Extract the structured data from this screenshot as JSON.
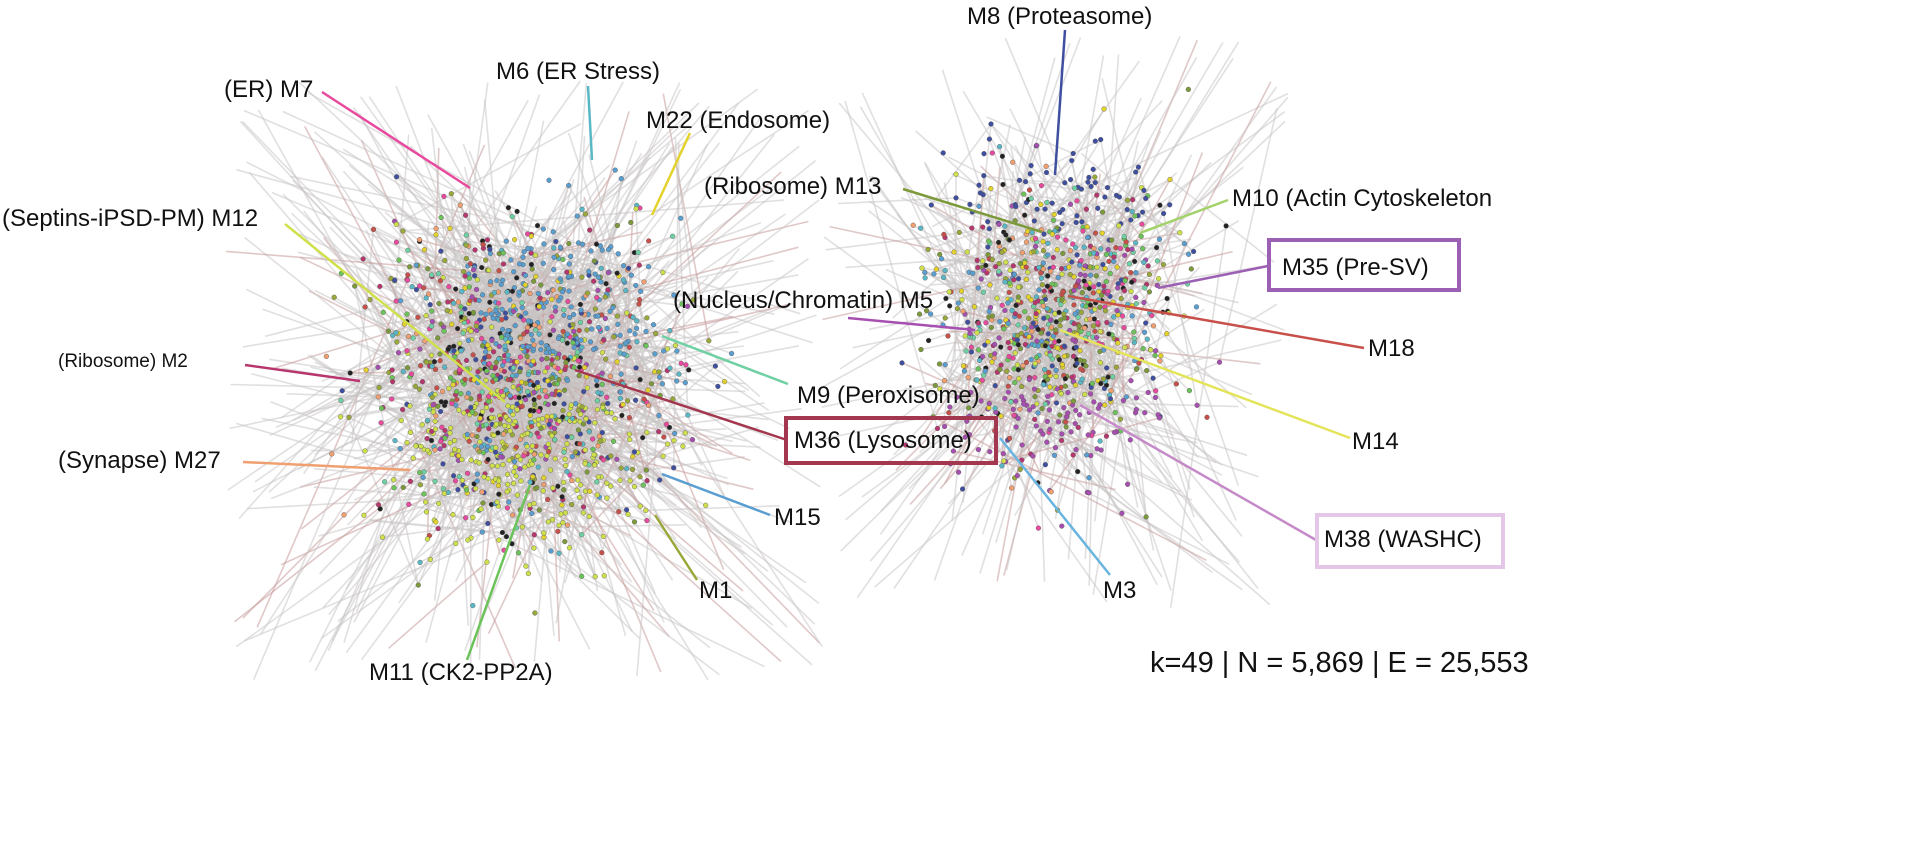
{
  "modules": [
    {
      "id": "m8",
      "label": "M8 (Proteasome)",
      "color": "#3f4fa0",
      "boxed": false
    },
    {
      "id": "m6",
      "label": "M6 (ER Stress)",
      "color": "#5ab8c6",
      "boxed": false
    },
    {
      "id": "m7",
      "label": "(ER) M7",
      "color": "#e84a9e",
      "boxed": false
    },
    {
      "id": "m22",
      "label": "M22 (Endosome)",
      "color": "#e3d22c",
      "boxed": false
    },
    {
      "id": "m13",
      "label": "(Ribosome) M13",
      "color": "#7c9a3b",
      "boxed": false
    },
    {
      "id": "m10",
      "label": "M10 (Actin Cytoskeleton",
      "color": "#a3d26b",
      "boxed": false
    },
    {
      "id": "m12",
      "label": "(Septins-iPSD-PM) M12",
      "color": "#cfe04a",
      "boxed": false
    },
    {
      "id": "m35",
      "label": "M35 (Pre-SV)",
      "color": "#9b5fb3",
      "boxed": true,
      "box_color": "#9b5fb3"
    },
    {
      "id": "m5",
      "label": "(Nucleus/Chromatin) M5",
      "color": "#a64fb0",
      "boxed": false
    },
    {
      "id": "m18",
      "label": "M18",
      "color": "#c8504a",
      "boxed": false
    },
    {
      "id": "m2",
      "label": "(Ribosome) M2",
      "color": "#b8366e",
      "boxed": false
    },
    {
      "id": "m9",
      "label": "M9 (Peroxisome)",
      "color": "#6fd0a4",
      "boxed": false
    },
    {
      "id": "m36",
      "label": "M36 (Lysosome)",
      "color": "#a3374f",
      "boxed": true,
      "box_color": "#a3374f"
    },
    {
      "id": "m14",
      "label": "M14",
      "color": "#e4e45a",
      "boxed": false
    },
    {
      "id": "m27",
      "label": "(Synapse) M27",
      "color": "#f0a070",
      "boxed": false
    },
    {
      "id": "m15",
      "label": "M15",
      "color": "#5a9ed0",
      "boxed": false
    },
    {
      "id": "m38",
      "label": "M38 (WASHC)",
      "color": "#c58ac8",
      "boxed": true,
      "box_color": "#e4c7e6"
    },
    {
      "id": "m1",
      "label": "M1",
      "color": "#9aa83a",
      "boxed": false
    },
    {
      "id": "m3",
      "label": "M3",
      "color": "#6ab4e0",
      "boxed": false
    },
    {
      "id": "m11",
      "label": "M11 (CK2-PP2A)",
      "color": "#6cc35a",
      "boxed": false
    }
  ],
  "stats": "k=49 | N = 5,869 | E = 25,553",
  "colors": {
    "edge": "#c9c4c4",
    "edge_red": "#c79a9a",
    "node_palette": [
      "#b8366e",
      "#e84a9e",
      "#3f4fa0",
      "#5a9ed0",
      "#cfe04a",
      "#e3d22c",
      "#6cc35a",
      "#5ab8c6",
      "#a64fb0",
      "#f0a070",
      "#c8504a",
      "#9aa83a",
      "#222222",
      "#6fd0a4",
      "#7c9a3b"
    ]
  }
}
